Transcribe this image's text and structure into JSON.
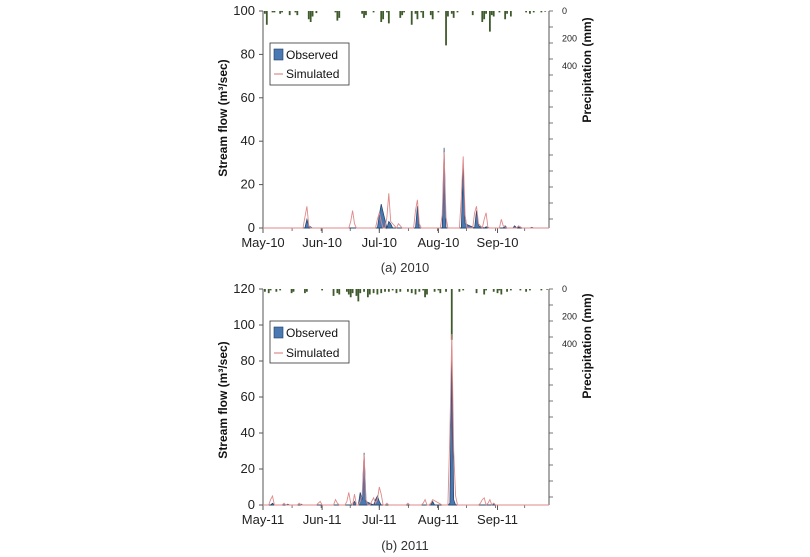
{
  "colors": {
    "observed_fill": "#4a78b0",
    "observed_edge": "#1f3f66",
    "simulated_line": "#e08a8a",
    "precip_bar": "#3f5a2c",
    "axis": "#555555"
  },
  "chart_data": [
    {
      "type": "area",
      "caption": "(a) 2010",
      "ylabel": "Stream flow (m³/sec)",
      "y2label": "Precipitation (mm)",
      "ylim": [
        0,
        100
      ],
      "y_ticks": [
        "0",
        "20",
        "40",
        "60",
        "80",
        "100"
      ],
      "y2_ticks": [
        "0",
        "200",
        "400"
      ],
      "xlim": [
        0,
        150
      ],
      "x_tick_labels": [
        "May-10",
        "Jun-10",
        "Jul-10",
        "Aug-10",
        "Sep-10"
      ],
      "x_tick_positions": [
        0,
        31,
        61,
        92,
        123
      ],
      "legend": [
        "Observed",
        "Simulated"
      ],
      "series": [
        {
          "name": "Observed",
          "x": [
            0,
            22,
            23,
            24,
            26,
            60,
            61,
            62,
            65,
            66,
            67,
            68,
            80,
            81,
            82,
            94,
            95,
            96,
            104,
            105,
            106,
            111,
            112,
            113,
            116,
            117,
            118,
            119,
            126,
            127,
            128,
            131,
            132,
            133,
            134,
            135,
            140,
            141,
            142,
            150
          ],
          "y": [
            0,
            0,
            4,
            1,
            0,
            0,
            6,
            11,
            0,
            3,
            2,
            0,
            0,
            10,
            0,
            0,
            37,
            0,
            0,
            29,
            2,
            0,
            8,
            1,
            0,
            0.6,
            0.3,
            0,
            0,
            1,
            0,
            0,
            1,
            0,
            0.5,
            0,
            0,
            0.3,
            0,
            0
          ]
        },
        {
          "name": "Simulated",
          "x": [
            0,
            21,
            22,
            23,
            24,
            25,
            45,
            46,
            47,
            48,
            49,
            59,
            60,
            61,
            62,
            63,
            64,
            65,
            66,
            67,
            70,
            71,
            72,
            73,
            79,
            80,
            81,
            82,
            83,
            93,
            94,
            95,
            96,
            97,
            100,
            103,
            104,
            105,
            106,
            107,
            110,
            111,
            112,
            113,
            115,
            116,
            117,
            118,
            124,
            125,
            126,
            127,
            128,
            133,
            134,
            135,
            136,
            150
          ],
          "y": [
            0,
            0,
            5,
            10,
            1,
            0,
            0,
            3,
            8,
            2,
            0,
            0,
            4,
            7,
            3,
            0,
            0,
            5,
            16,
            3,
            0,
            2,
            1,
            0,
            0,
            8,
            13,
            2,
            0,
            0,
            6,
            35,
            5,
            0,
            0,
            0,
            14,
            33,
            6,
            0,
            0,
            7,
            10,
            2,
            0,
            4,
            7,
            0,
            0,
            4,
            1,
            0.5,
            0,
            0,
            1,
            0.5,
            0,
            0
          ]
        },
        {
          "name": "Precipitation",
          "x": [
            1,
            2,
            5,
            6,
            9,
            10,
            14,
            17,
            18,
            24,
            25,
            26,
            28,
            38,
            39,
            40,
            52,
            53,
            54,
            58,
            62,
            63,
            65,
            66,
            72,
            73,
            74,
            78,
            80,
            81,
            83,
            84,
            88,
            89,
            92,
            96,
            97,
            99,
            100,
            102,
            110,
            115,
            116,
            117,
            119,
            120,
            121,
            124,
            127,
            128,
            130,
            138,
            140,
            142,
            146,
            148
          ],
          "y": [
            20,
            100,
            10,
            10,
            20,
            10,
            30,
            10,
            30,
            60,
            80,
            40,
            15,
            10,
            70,
            50,
            20,
            50,
            30,
            10,
            80,
            60,
            10,
            90,
            50,
            30,
            10,
            100,
            20,
            60,
            10,
            50,
            30,
            60,
            10,
            250,
            40,
            20,
            50,
            10,
            30,
            80,
            60,
            20,
            150,
            30,
            40,
            10,
            60,
            20,
            40,
            10,
            20,
            10,
            10,
            5
          ]
        }
      ]
    },
    {
      "type": "area",
      "caption": "(b) 2011",
      "ylabel": "Stream flow (m³/sec)",
      "y2label": "Precipitation (mm)",
      "ylim": [
        0,
        120
      ],
      "y_ticks": [
        "0",
        "20",
        "40",
        "60",
        "80",
        "100",
        "120"
      ],
      "y2_ticks": [
        "0",
        "200",
        "400"
      ],
      "xlim": [
        0,
        150
      ],
      "x_tick_labels": [
        "May-11",
        "Jun-11",
        "Jul-11",
        "Aug-11",
        "Sep-11"
      ],
      "x_tick_positions": [
        0,
        31,
        61,
        92,
        123
      ],
      "legend": [
        "Observed",
        "Simulated"
      ],
      "series": [
        {
          "name": "Observed",
          "x": [
            0,
            4,
            5,
            6,
            12,
            13,
            14,
            19,
            20,
            21,
            47,
            48,
            49,
            50,
            51,
            52,
            53,
            54,
            58,
            59,
            60,
            61,
            62,
            88,
            89,
            90,
            97,
            98,
            99,
            100,
            101,
            120,
            121,
            122,
            150
          ],
          "y": [
            0,
            0,
            1,
            0,
            0,
            0.5,
            0,
            0,
            0.5,
            0,
            0,
            2,
            0,
            0,
            7,
            3,
            29,
            2,
            0,
            3,
            5,
            2,
            0,
            0,
            2,
            0,
            0,
            1,
            87,
            3,
            0,
            0,
            1,
            0,
            0
          ]
        },
        {
          "name": "Simulated",
          "x": [
            0,
            3,
            4,
            5,
            6,
            10,
            11,
            12,
            18,
            19,
            20,
            28,
            29,
            30,
            31,
            37,
            38,
            39,
            40,
            43,
            44,
            45,
            46,
            47,
            48,
            49,
            50,
            51,
            52,
            53,
            54,
            55,
            56,
            57,
            58,
            59,
            60,
            61,
            62,
            63,
            64,
            65,
            66,
            75,
            76,
            77,
            83,
            84,
            85,
            86,
            87,
            88,
            89,
            94,
            96,
            97,
            98,
            99,
            100,
            101,
            102,
            103,
            113,
            114,
            115,
            116,
            117,
            118,
            119,
            120,
            121,
            122,
            150
          ],
          "y": [
            0,
            0,
            3,
            5,
            0,
            0,
            1,
            0,
            0,
            1,
            0,
            0,
            1,
            2,
            0,
            0,
            3,
            1,
            0,
            0,
            2,
            7,
            1,
            0,
            6,
            0,
            0,
            2,
            5,
            28,
            3,
            0,
            0,
            2,
            4,
            1,
            3,
            10,
            6,
            0,
            0,
            1,
            0,
            0,
            1,
            0,
            0,
            1,
            3,
            0,
            0,
            1,
            3,
            0,
            0,
            0,
            40,
            95,
            30,
            5,
            0,
            0,
            0,
            1,
            3,
            4,
            0,
            1,
            3,
            0,
            1,
            0,
            0
          ]
        },
        {
          "name": "Precipitation",
          "x": [
            1,
            3,
            4,
            7,
            9,
            15,
            16,
            22,
            23,
            31,
            37,
            39,
            40,
            44,
            45,
            46,
            47,
            49,
            50,
            51,
            53,
            55,
            56,
            58,
            60,
            62,
            64,
            66,
            68,
            70,
            72,
            76,
            78,
            80,
            82,
            84,
            85,
            86,
            90,
            92,
            93,
            96,
            99,
            103,
            105,
            112,
            116,
            117,
            121,
            123,
            124,
            125,
            128,
            130,
            135,
            138,
            140,
            146,
            149
          ],
          "y": [
            20,
            30,
            10,
            20,
            10,
            30,
            20,
            30,
            20,
            10,
            50,
            30,
            40,
            20,
            40,
            60,
            30,
            50,
            90,
            30,
            20,
            60,
            40,
            30,
            40,
            30,
            20,
            20,
            10,
            30,
            20,
            20,
            30,
            40,
            20,
            10,
            60,
            40,
            20,
            10,
            30,
            20,
            370,
            20,
            10,
            30,
            40,
            10,
            20,
            30,
            10,
            40,
            20,
            10,
            10,
            20,
            10,
            10,
            5
          ]
        }
      ]
    }
  ]
}
